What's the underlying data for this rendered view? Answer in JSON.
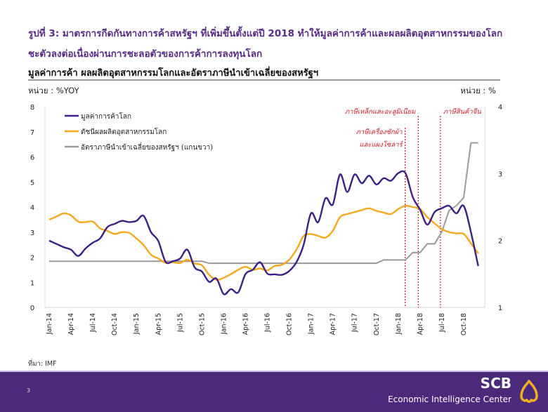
{
  "header": {
    "title_line1": "รูปที่ 3: มาตรการกีดกันทางการค้าสหรัฐฯ ที่เพิ่มขึ้นตั้งแต่ปี 2018 ทำให้มูลค่าการค้าและผลผลิตอุตสาหกรรมของโลก",
    "title_line2": "ชะตัวลงต่อเนื่องผ่านการชะลอตัวของการค้าการลงทุนโลก",
    "chart_title": "มูลค่าการค้า ผลผลิตอุตสาหกรรมโลกและอัตราภาษีนำเข้าเฉลี่ยของสหรัฐฯ",
    "unit_left": "หน่วย : %YOY",
    "unit_right": "หน่วย : %"
  },
  "source": "ที่มา: IMF",
  "footer": {
    "page_number": "3",
    "brand": "SCB",
    "brand_sub": "Economic Intelligence Center",
    "bg_color": "#4b2a7c",
    "logo_color": "#f2b01e"
  },
  "chart_data": {
    "type": "line",
    "title": "มูลค่าการค้า ผลผลิตอุตสาหกรรมโลกและอัตราภาษีนำเข้าเฉลี่ยของสหรัฐฯ",
    "x_start": "Jan-14",
    "x_end": "Dec-18",
    "x_frequency": "monthly",
    "x_tick_labels": [
      "Jan-14",
      "Apr-14",
      "Jul-14",
      "Oct-14",
      "Jan-15",
      "Apr-15",
      "Jul-15",
      "Oct-15",
      "Jan-16",
      "Apr-16",
      "Jul-16",
      "Oct-16",
      "Jan-17",
      "Apr-17",
      "Jul-17",
      "Oct-17",
      "Jan-18",
      "Apr-18",
      "Jul-18",
      "Oct-18"
    ],
    "y_left": {
      "label": "หน่วย : %YOY",
      "range": [
        0,
        8
      ],
      "ticks": [
        "0",
        "1",
        "2",
        "3",
        "4",
        "5",
        "6",
        "7",
        "8"
      ]
    },
    "y_right": {
      "label": "หน่วย : %",
      "range": [
        1,
        4
      ],
      "ticks": [
        "1",
        "2",
        "3",
        "4"
      ]
    },
    "grid": false,
    "legend_placement": "top-left",
    "series": [
      {
        "name": "มูลค่าการค้าโลก",
        "axis": "left",
        "color": "#3d2085",
        "values": [
          2.66,
          2.53,
          2.4,
          2.3,
          2.05,
          2.35,
          2.58,
          2.75,
          3.2,
          3.33,
          3.45,
          3.4,
          3.45,
          3.65,
          3.0,
          2.65,
          1.82,
          1.84,
          1.95,
          2.3,
          1.6,
          1.43,
          1.02,
          1.15,
          0.53,
          0.73,
          0.6,
          1.33,
          1.5,
          1.8,
          1.35,
          1.32,
          1.3,
          1.45,
          1.8,
          2.5,
          3.75,
          3.4,
          4.35,
          4.1,
          5.3,
          4.6,
          5.3,
          4.95,
          5.25,
          4.9,
          5.15,
          5.05,
          5.35,
          5.35,
          4.4,
          3.9,
          3.3,
          3.8,
          3.95,
          4.05,
          3.75,
          4.05,
          3.0,
          1.65
        ]
      },
      {
        "name": "ดัชนีผลผลิตอุตสาหกรรมโลก",
        "axis": "left",
        "color": "#f5a81c",
        "values": [
          3.5,
          3.62,
          3.75,
          3.67,
          3.42,
          3.4,
          3.42,
          3.15,
          3.05,
          2.93,
          3.0,
          2.97,
          2.75,
          2.48,
          2.1,
          1.95,
          1.78,
          1.8,
          1.77,
          1.9,
          1.75,
          1.68,
          1.3,
          1.1,
          1.18,
          1.33,
          1.5,
          1.62,
          1.5,
          1.55,
          1.48,
          1.65,
          1.7,
          1.9,
          2.3,
          2.85,
          2.92,
          2.85,
          2.78,
          3.05,
          3.6,
          3.72,
          3.8,
          3.88,
          3.95,
          3.85,
          3.78,
          3.72,
          3.92,
          4.05,
          4.0,
          3.92,
          3.6,
          3.35,
          3.12,
          3.0,
          2.95,
          2.93,
          2.55,
          2.15
        ]
      },
      {
        "name": "อัตราภาษีนำเข้าเฉลี่ยของสหรัฐฯ (แกนขวา)",
        "axis": "right",
        "color": "#9a9a9a",
        "values": [
          1.69,
          1.69,
          1.69,
          1.69,
          1.69,
          1.69,
          1.69,
          1.69,
          1.69,
          1.69,
          1.69,
          1.69,
          1.69,
          1.69,
          1.69,
          1.69,
          1.69,
          1.69,
          1.69,
          1.69,
          1.69,
          1.69,
          1.66,
          1.66,
          1.66,
          1.66,
          1.66,
          1.66,
          1.66,
          1.66,
          1.66,
          1.66,
          1.66,
          1.66,
          1.66,
          1.66,
          1.66,
          1.66,
          1.66,
          1.66,
          1.66,
          1.66,
          1.66,
          1.66,
          1.66,
          1.66,
          1.71,
          1.71,
          1.71,
          1.71,
          1.82,
          1.82,
          1.95,
          1.95,
          2.13,
          2.45,
          2.52,
          2.64,
          3.46,
          3.46
        ]
      }
    ],
    "annotations": [
      {
        "lines": [
          "ภาษีเครื่องซักผ้า",
          "และแผงโซลาร์"
        ],
        "x": "Feb-18",
        "color": "#d0202a"
      },
      {
        "lines": [
          "ภาษีเหล็กและอะลูมิเนียม"
        ],
        "x": "Apr-18",
        "color": "#d0202a"
      },
      {
        "lines": [
          "ภาษีสินค้าจีน"
        ],
        "x": "Jul-18",
        "color": "#d0202a"
      }
    ]
  }
}
